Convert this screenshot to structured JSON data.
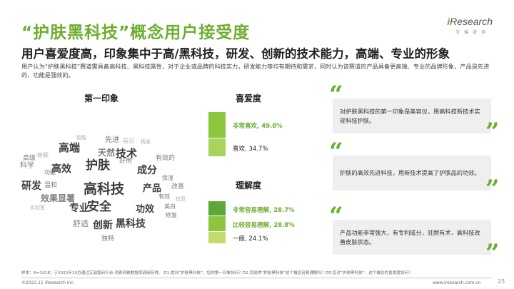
{
  "header": {
    "title": "“护肤黑科技”概念用户接受度",
    "subtitle": "用户喜爱度高，印象集中于高/黑科技，研发、创新的技术能力，高端、专业的形象",
    "description": "用户认为“护肤黑科技”赛道需具备高科技、黑科技属性，对于企业或品牌的科技实力，研发能力等均有期待和需求，同时认为该赛道的产品具备更高端、专业的品牌形象，产品是先进的、功能是强效的。"
  },
  "logo": {
    "brand_i": "i",
    "brand_rest": "Research",
    "sub": "艾瑞咨询"
  },
  "first_impression": {
    "label": "第一印象",
    "words": [
      "高科技",
      "护肤",
      "技术",
      "高端",
      "高效",
      "成分",
      "安全",
      "创新",
      "功效",
      "专业",
      "研发",
      "黑科技",
      "产品",
      "天然",
      "先进",
      "效果显著",
      "科学",
      "舒适",
      "独特",
      "好用",
      "有效的",
      "高级",
      "温和",
      "有效",
      "改善",
      "功能",
      "美白",
      "修复",
      "保湿",
      "新颖",
      "抗衰",
      "前沿",
      "精准",
      "智能",
      "实验室"
    ]
  },
  "favorability": {
    "label": "喜爱度",
    "items": [
      {
        "name": "非常喜欢",
        "value": 49.8,
        "text": "非常喜欢, 49.8%",
        "highlight": true,
        "color": "#8cc63e"
      },
      {
        "name": "喜欢",
        "value": 34.7,
        "text": "喜欢, 34.7%",
        "highlight": false,
        "color": "#a9d35c"
      }
    ]
  },
  "understanding": {
    "label": "理解度",
    "items": [
      {
        "name": "非常容易理解",
        "value": 28.7,
        "text": "非常容易理解, 28.7%",
        "highlight": true,
        "color": "#5ea83a"
      },
      {
        "name": "比较容易理解",
        "value": 28.8,
        "text": "比较容易理解, 28.8%",
        "highlight": true,
        "color": "#8cc63e"
      },
      {
        "name": "一般",
        "value": 24.1,
        "text": "一般, 24.1%",
        "highlight": false,
        "color": "#c3dc6e"
      }
    ]
  },
  "quotes": [
    {
      "text": "对护肤黑科技的第一印象是美容仪，用高科技新技术实现科技护肤。"
    },
    {
      "text": "护肤的高效先进科技，用新技术提高了护肤品的功效。"
    },
    {
      "text": "产品功能非常强大，有专利成分，驻颜有术，高科技改善皮肤状态。"
    }
  ],
  "quote_marks": {
    "open": "“",
    "close": "”"
  },
  "footer": {
    "note": "样本：N=1618；于2022年10月通过艾瑞智研平台-消费洞察数据库调研获得。 D1.提到“护肤黑科技”，您的第一印象如何？D2.您觉得“护肤黑科技”这个概念容易理解吗？D5.您对“护肤黑科技”，这个概念的喜爱度如何？",
    "copyright": "©2022.11 iResearch Inc.",
    "website": "www.iresearch.com.cn",
    "page": "25"
  },
  "colors": {
    "accent": "#6cae2e",
    "card_bg": "#efefef",
    "word_dark": "#3d3d3d",
    "word_mid": "#7a7a7a",
    "word_light": "#b0b0b0"
  }
}
